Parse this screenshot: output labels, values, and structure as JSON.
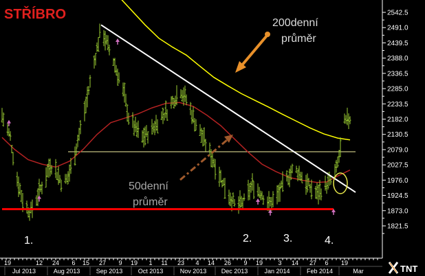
{
  "chart_data": {
    "type": "ohlc",
    "title": "STŘÍBRO",
    "ylim": [
      1795,
      2568
    ],
    "y_ticks": [
      "2542.5",
      "2491.0",
      "2439.5",
      "2388.0",
      "2336.5",
      "2285.0",
      "2233.5",
      "2182.0",
      "2130.5",
      "2079.0",
      "2027.5",
      "1976.0",
      "1924.5",
      "1873.0",
      "1821.5"
    ],
    "x_day_ticks": [
      {
        "label": "19",
        "day": 0
      },
      {
        "label": "12",
        "day": 23
      },
      {
        "label": "24",
        "day": 35
      },
      {
        "label": "6",
        "day": 48
      },
      {
        "label": "15",
        "day": 57
      },
      {
        "label": "27",
        "day": 69
      },
      {
        "label": "9",
        "day": 82
      },
      {
        "label": "19",
        "day": 92
      },
      {
        "label": "1",
        "day": 104
      },
      {
        "label": "11",
        "day": 114
      },
      {
        "label": "23",
        "day": 126
      },
      {
        "label": "4",
        "day": 138
      },
      {
        "label": "14",
        "day": 148
      },
      {
        "label": "26",
        "day": 160
      },
      {
        "label": "9",
        "day": 173
      },
      {
        "label": "19",
        "day": 183
      },
      {
        "label": "3",
        "day": 198
      },
      {
        "label": "14",
        "day": 209
      },
      {
        "label": "27",
        "day": 222
      },
      {
        "label": "6",
        "day": 232
      },
      {
        "label": "19",
        "day": 245
      }
    ],
    "x_months": [
      {
        "label": "Jul 2013",
        "day": 12
      },
      {
        "label": "Aug 2013",
        "day": 43
      },
      {
        "label": "Sep 2013",
        "day": 74
      },
      {
        "label": "Oct 2013",
        "day": 104
      },
      {
        "label": "Nov 2013",
        "day": 135
      },
      {
        "label": "Dec 2013",
        "day": 165
      },
      {
        "label": "Jan 2014",
        "day": 196
      },
      {
        "label": "Feb 2014",
        "day": 227
      },
      {
        "label": "Mar",
        "day": 255
      }
    ],
    "price_path": [
      [
        -4,
        2195
      ],
      [
        2,
        2120
      ],
      [
        6,
        2000
      ],
      [
        12,
        1890
      ],
      [
        17,
        1870
      ],
      [
        22,
        1925
      ],
      [
        27,
        1980
      ],
      [
        31,
        2030
      ],
      [
        35,
        2010
      ],
      [
        40,
        1960
      ],
      [
        44,
        1985
      ],
      [
        48,
        2050
      ],
      [
        53,
        2150
      ],
      [
        57,
        2230
      ],
      [
        61,
        2330
      ],
      [
        65,
        2420
      ],
      [
        68,
        2490
      ],
      [
        72,
        2440
      ],
      [
        77,
        2380
      ],
      [
        81,
        2320
      ],
      [
        85,
        2260
      ],
      [
        88,
        2190
      ],
      [
        93,
        2150
      ],
      [
        98,
        2120
      ],
      [
        104,
        2140
      ],
      [
        110,
        2180
      ],
      [
        116,
        2210
      ],
      [
        121,
        2250
      ],
      [
        126,
        2280
      ],
      [
        131,
        2240
      ],
      [
        136,
        2175
      ],
      [
        142,
        2120
      ],
      [
        148,
        2060
      ],
      [
        154,
        1995
      ],
      [
        160,
        1935
      ],
      [
        166,
        1885
      ],
      [
        172,
        1905
      ],
      [
        178,
        1960
      ],
      [
        184,
        1935
      ],
      [
        190,
        1895
      ],
      [
        196,
        1920
      ],
      [
        202,
        1975
      ],
      [
        208,
        2015
      ],
      [
        213,
        1995
      ],
      [
        219,
        1955
      ],
      [
        225,
        1930
      ],
      [
        230,
        1950
      ],
      [
        236,
        1980
      ],
      [
        239,
        2010
      ],
      [
        242,
        2080
      ],
      [
        245,
        2170
      ],
      [
        249,
        2185
      ]
    ],
    "ma50": [
      [
        -4,
        2120
      ],
      [
        5,
        2080
      ],
      [
        15,
        2045
      ],
      [
        25,
        2030
      ],
      [
        35,
        2020
      ],
      [
        45,
        2040
      ],
      [
        55,
        2080
      ],
      [
        65,
        2130
      ],
      [
        75,
        2170
      ],
      [
        85,
        2185
      ],
      [
        95,
        2200
      ],
      [
        105,
        2220
      ],
      [
        115,
        2235
      ],
      [
        125,
        2238
      ],
      [
        135,
        2225
      ],
      [
        145,
        2195
      ],
      [
        155,
        2160
      ],
      [
        165,
        2115
      ],
      [
        175,
        2070
      ],
      [
        185,
        2030
      ],
      [
        195,
        2005
      ],
      [
        205,
        1985
      ],
      [
        215,
        1975
      ],
      [
        225,
        1968
      ],
      [
        232,
        1970
      ],
      [
        240,
        1990
      ],
      [
        249,
        2010
      ]
    ],
    "ma200": [
      [
        80,
        2600
      ],
      [
        100,
        2500
      ],
      [
        110,
        2455
      ],
      [
        120,
        2425
      ],
      [
        130,
        2398
      ],
      [
        140,
        2360
      ],
      [
        150,
        2323
      ],
      [
        160,
        2295
      ],
      [
        170,
        2268
      ],
      [
        180,
        2245
      ],
      [
        190,
        2222
      ],
      [
        200,
        2198
      ],
      [
        210,
        2175
      ],
      [
        220,
        2152
      ],
      [
        230,
        2132
      ],
      [
        240,
        2118
      ],
      [
        249,
        2112
      ]
    ],
    "annotations": {
      "ma200_label_line1": "200denní",
      "ma200_label_line2": "průměr",
      "ma50_label_line1": "50denní",
      "ma50_label_line2": "průměr",
      "low_labels": [
        "1.",
        "2.",
        "3.",
        "4."
      ]
    },
    "trendline": {
      "start": [
        68,
        2500
      ],
      "end": [
        253,
        1935
      ]
    },
    "support_line": {
      "y": 1878,
      "start_day": -4,
      "end_day": 237
    },
    "neckline": {
      "y": 2072,
      "start_day": 44,
      "end_day": 253
    },
    "colors": {
      "background": "#000000",
      "price": "#9acd32",
      "ma50": "#b22222",
      "ma200": "#ffff00",
      "trendline": "#ffffff",
      "support": "#ff0000",
      "arrow_orange": "#e8902a",
      "arrow_brown": "#a05a2c",
      "title": "#e0201e",
      "marker": "#d070c0"
    },
    "logo": "TNT"
  }
}
